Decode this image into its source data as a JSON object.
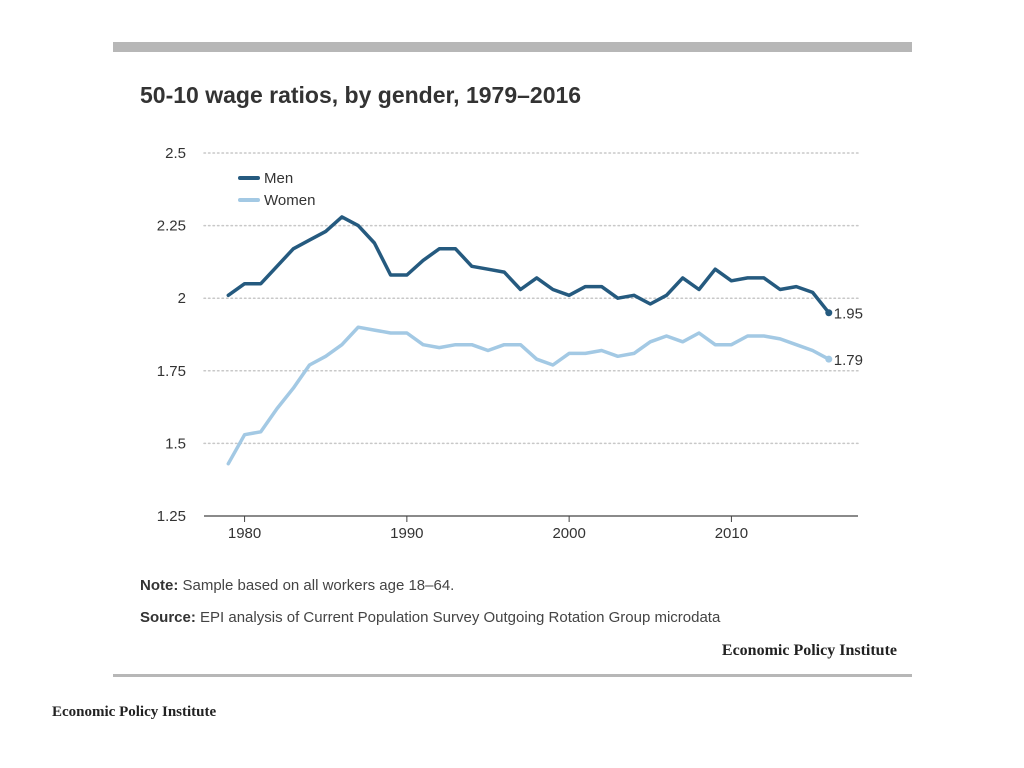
{
  "page": {
    "title": "50-10 wage ratios, by gender, 1979–2016",
    "note_label": "Note:",
    "note_text": "Sample based on all workers age 18–64.",
    "source_label": "Source:",
    "source_text": "EPI analysis of Current Population Survey Outgoing Rotation Group microdata",
    "brand_chart": "Economic Policy Institute",
    "brand_page": "Economic Policy Institute"
  },
  "chart_data": {
    "type": "line",
    "title": "50-10 wage ratios, by gender, 1979–2016",
    "xlabel": "",
    "ylabel": "",
    "x": [
      1979,
      1980,
      1981,
      1982,
      1983,
      1984,
      1985,
      1986,
      1987,
      1988,
      1989,
      1990,
      1991,
      1992,
      1993,
      1994,
      1995,
      1996,
      1997,
      1998,
      1999,
      2000,
      2001,
      2002,
      2003,
      2004,
      2005,
      2006,
      2007,
      2008,
      2009,
      2010,
      2011,
      2012,
      2013,
      2014,
      2015,
      2016
    ],
    "xlim": [
      1977.5,
      2017.8
    ],
    "ylim": [
      1.25,
      2.5
    ],
    "xticks": [
      1980,
      1990,
      2000,
      2010
    ],
    "yticks": [
      1.25,
      1.5,
      1.75,
      2,
      2.25,
      2.5
    ],
    "ytick_labels": [
      "1.25",
      "1.5",
      "1.75",
      "2",
      "2.25",
      "2.5"
    ],
    "grid": "horizontal dotted",
    "legend_position": "top-left",
    "series": [
      {
        "name": "Men",
        "color": "#255a7f",
        "end_label": "1.95",
        "values": [
          2.01,
          2.05,
          2.05,
          2.11,
          2.17,
          2.2,
          2.23,
          2.28,
          2.25,
          2.19,
          2.08,
          2.08,
          2.13,
          2.17,
          2.17,
          2.11,
          2.1,
          2.09,
          2.03,
          2.07,
          2.03,
          2.01,
          2.04,
          2.04,
          2.0,
          2.01,
          1.98,
          2.01,
          2.07,
          2.03,
          2.1,
          2.06,
          2.07,
          2.07,
          2.03,
          2.04,
          2.02,
          1.95
        ]
      },
      {
        "name": "Women",
        "color": "#a3c9e4",
        "end_label": "1.79",
        "values": [
          1.43,
          1.53,
          1.54,
          1.62,
          1.69,
          1.77,
          1.8,
          1.84,
          1.9,
          1.89,
          1.88,
          1.88,
          1.84,
          1.83,
          1.84,
          1.84,
          1.82,
          1.84,
          1.84,
          1.79,
          1.77,
          1.81,
          1.81,
          1.82,
          1.8,
          1.81,
          1.85,
          1.87,
          1.85,
          1.88,
          1.84,
          1.84,
          1.87,
          1.87,
          1.86,
          1.84,
          1.82,
          1.79
        ]
      }
    ]
  }
}
